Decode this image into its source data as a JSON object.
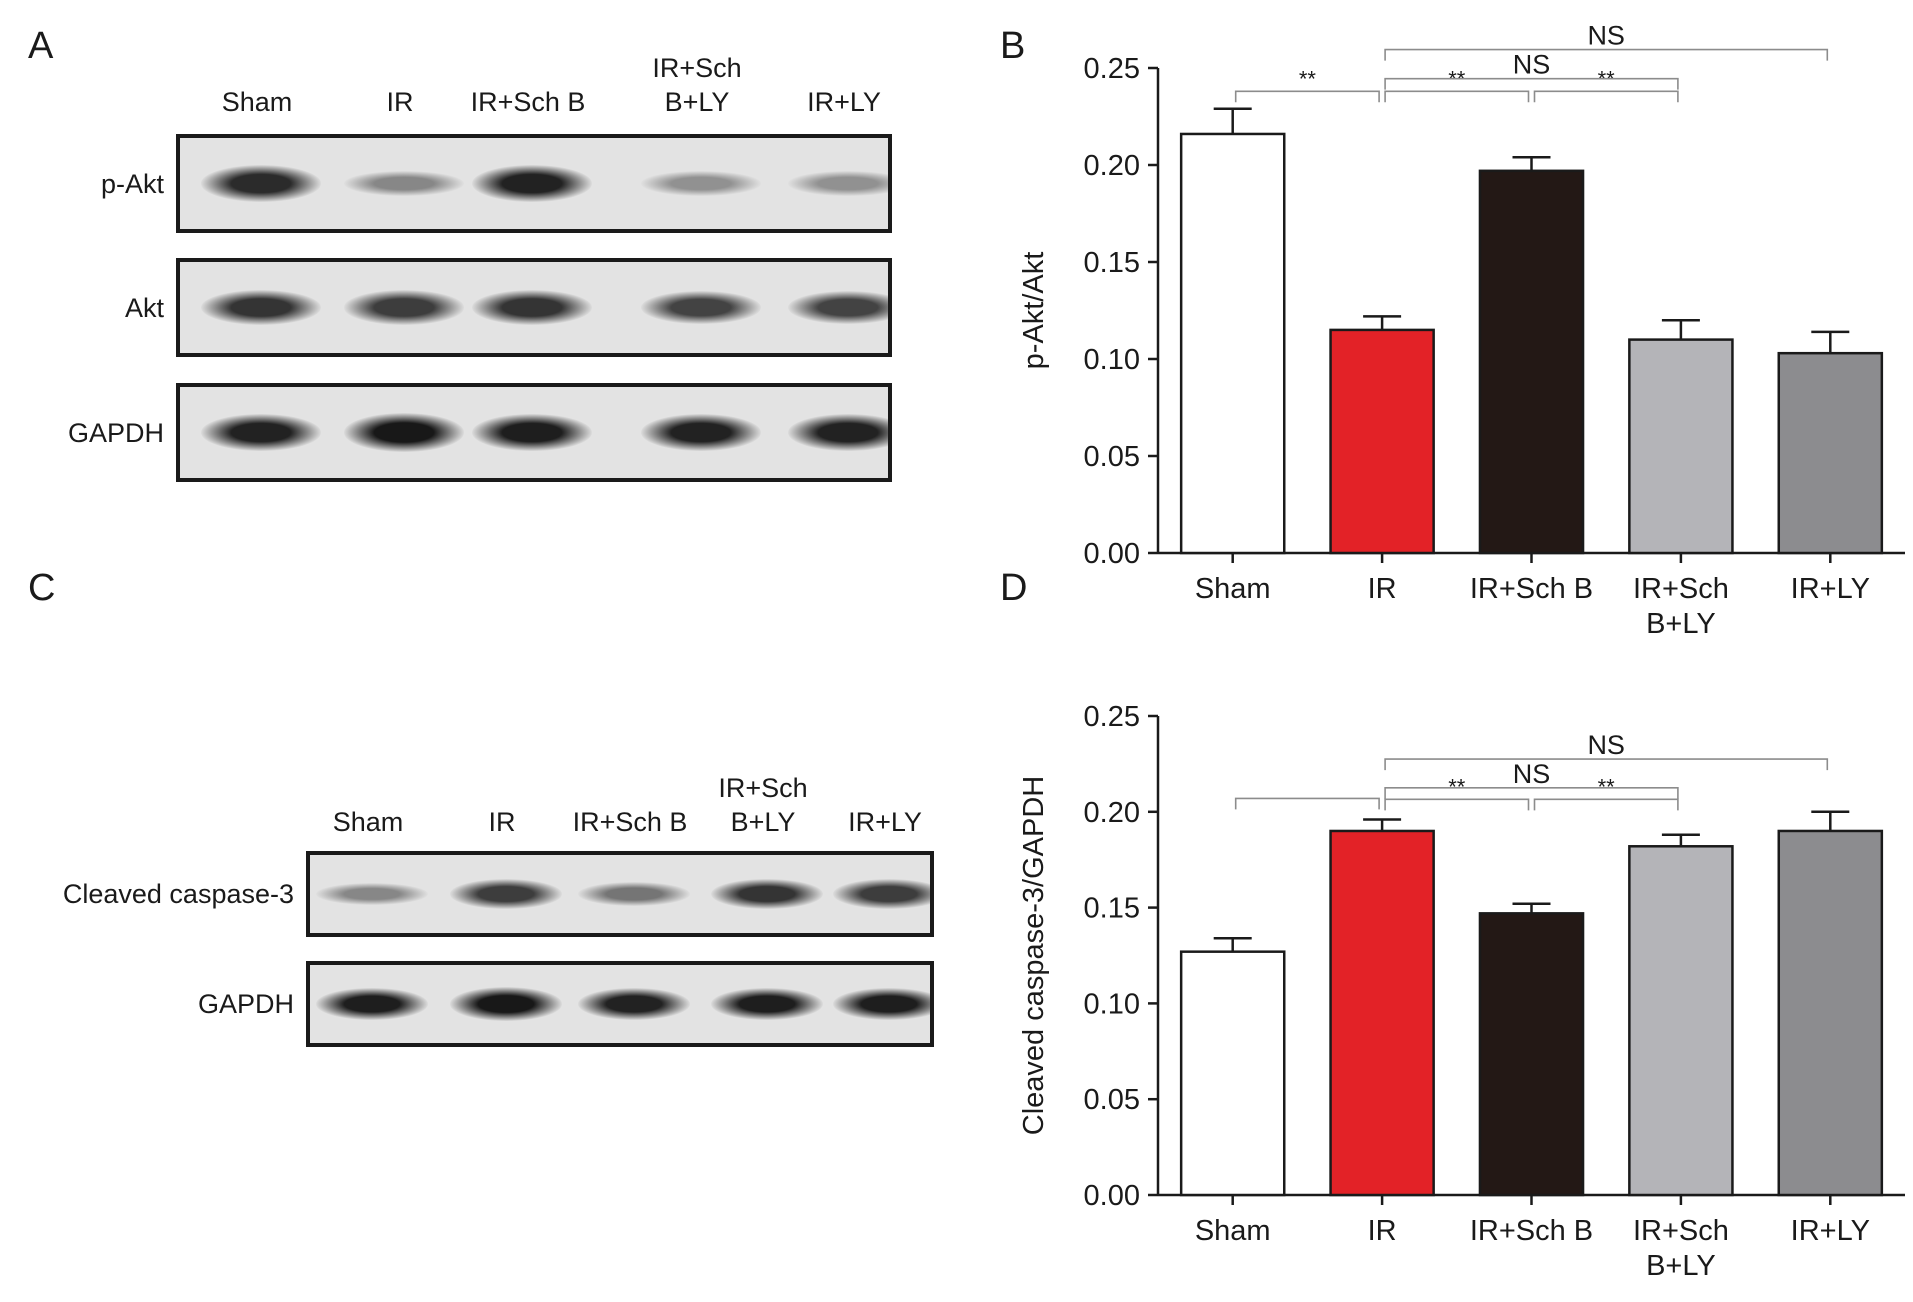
{
  "panel_a": {
    "letter": "A",
    "lanes": [
      {
        "line1": "",
        "line2": "Sham"
      },
      {
        "line1": "",
        "line2": "IR"
      },
      {
        "line1": "",
        "line2": "IR+Sch B"
      },
      {
        "line1": "IR+Sch",
        "line2": "B+LY"
      },
      {
        "line1": "",
        "line2": "IR+LY"
      }
    ],
    "rows": [
      {
        "label": "p-Akt",
        "intensity": [
          0.85,
          0.35,
          0.9,
          0.3,
          0.3
        ]
      },
      {
        "label": "Akt",
        "intensity": [
          0.8,
          0.75,
          0.8,
          0.72,
          0.72
        ]
      },
      {
        "label": "GAPDH",
        "intensity": [
          0.9,
          0.95,
          0.92,
          0.9,
          0.9
        ]
      }
    ]
  },
  "panel_c": {
    "letter": "C",
    "lanes": [
      {
        "line1": "",
        "line2": "Sham"
      },
      {
        "line1": "",
        "line2": "IR"
      },
      {
        "line1": "",
        "line2": "IR+Sch B"
      },
      {
        "line1": "IR+Sch",
        "line2": "B+LY"
      },
      {
        "line1": "",
        "line2": "IR+LY"
      }
    ],
    "rows": [
      {
        "label": "Cleaved caspase-3",
        "intensity": [
          0.35,
          0.75,
          0.45,
          0.8,
          0.75
        ]
      },
      {
        "label": "GAPDH",
        "intensity": [
          0.92,
          0.95,
          0.9,
          0.92,
          0.92
        ]
      }
    ]
  },
  "chart_data": [
    {
      "letter": "B",
      "type": "bar",
      "ylabel": "p-Akt/Akt",
      "ylim": [
        0,
        0.25
      ],
      "yticks": [
        "0.00",
        "0.05",
        "0.10",
        "0.15",
        "0.20",
        "0.25"
      ],
      "categories": [
        {
          "line1": "Sham",
          "line2": ""
        },
        {
          "line1": "IR",
          "line2": ""
        },
        {
          "line1": "IR+Sch B",
          "line2": ""
        },
        {
          "line1": "IR+Sch",
          "line2": "B+LY"
        },
        {
          "line1": "IR+LY",
          "line2": ""
        }
      ],
      "values": [
        0.216,
        0.115,
        0.197,
        0.11,
        0.103
      ],
      "errors": [
        0.013,
        0.007,
        0.007,
        0.01,
        0.011
      ],
      "colors": [
        "#ffffff",
        "#e32227",
        "#231815",
        "#b4b4b8",
        "#8c8c8f"
      ],
      "significance": [
        {
          "from": 0,
          "to": 1,
          "text": "**",
          "y": 0.238
        },
        {
          "from": 1,
          "to": 2,
          "text": "**",
          "y": 0.238
        },
        {
          "from": 2,
          "to": 3,
          "text": "**",
          "y": 0.238
        },
        {
          "from": 1,
          "to": 3,
          "text": "NS",
          "y": 0.2445
        },
        {
          "from": 1,
          "to": 4,
          "text": "NS",
          "y": 0.2595
        }
      ]
    },
    {
      "letter": "D",
      "type": "bar",
      "ylabel": "Cleaved caspase-3/GAPDH",
      "ylim": [
        0,
        0.25
      ],
      "yticks": [
        "0.00",
        "0.05",
        "0.10",
        "0.15",
        "0.20",
        "0.25"
      ],
      "categories": [
        {
          "line1": "Sham",
          "line2": ""
        },
        {
          "line1": "IR",
          "line2": ""
        },
        {
          "line1": "IR+Sch B",
          "line2": ""
        },
        {
          "line1": "IR+Sch",
          "line2": "B+LY"
        },
        {
          "line1": "IR+LY",
          "line2": ""
        }
      ],
      "values": [
        0.127,
        0.19,
        0.147,
        0.182,
        0.19
      ],
      "errors": [
        0.007,
        0.006,
        0.005,
        0.006,
        0.01
      ],
      "colors": [
        "#ffffff",
        "#e32227",
        "#231815",
        "#b4b4b8",
        "#8c8c8f"
      ],
      "significance": [
        {
          "from": 0,
          "to": 1,
          "text": "",
          "y": 0.207
        },
        {
          "from": 1,
          "to": 2,
          "text": "**",
          "y": 0.2065
        },
        {
          "from": 2,
          "to": 3,
          "text": "**",
          "y": 0.2065
        },
        {
          "from": 1,
          "to": 3,
          "text": "NS",
          "y": 0.2125
        },
        {
          "from": 1,
          "to": 4,
          "text": "NS",
          "y": 0.2275
        }
      ]
    }
  ]
}
